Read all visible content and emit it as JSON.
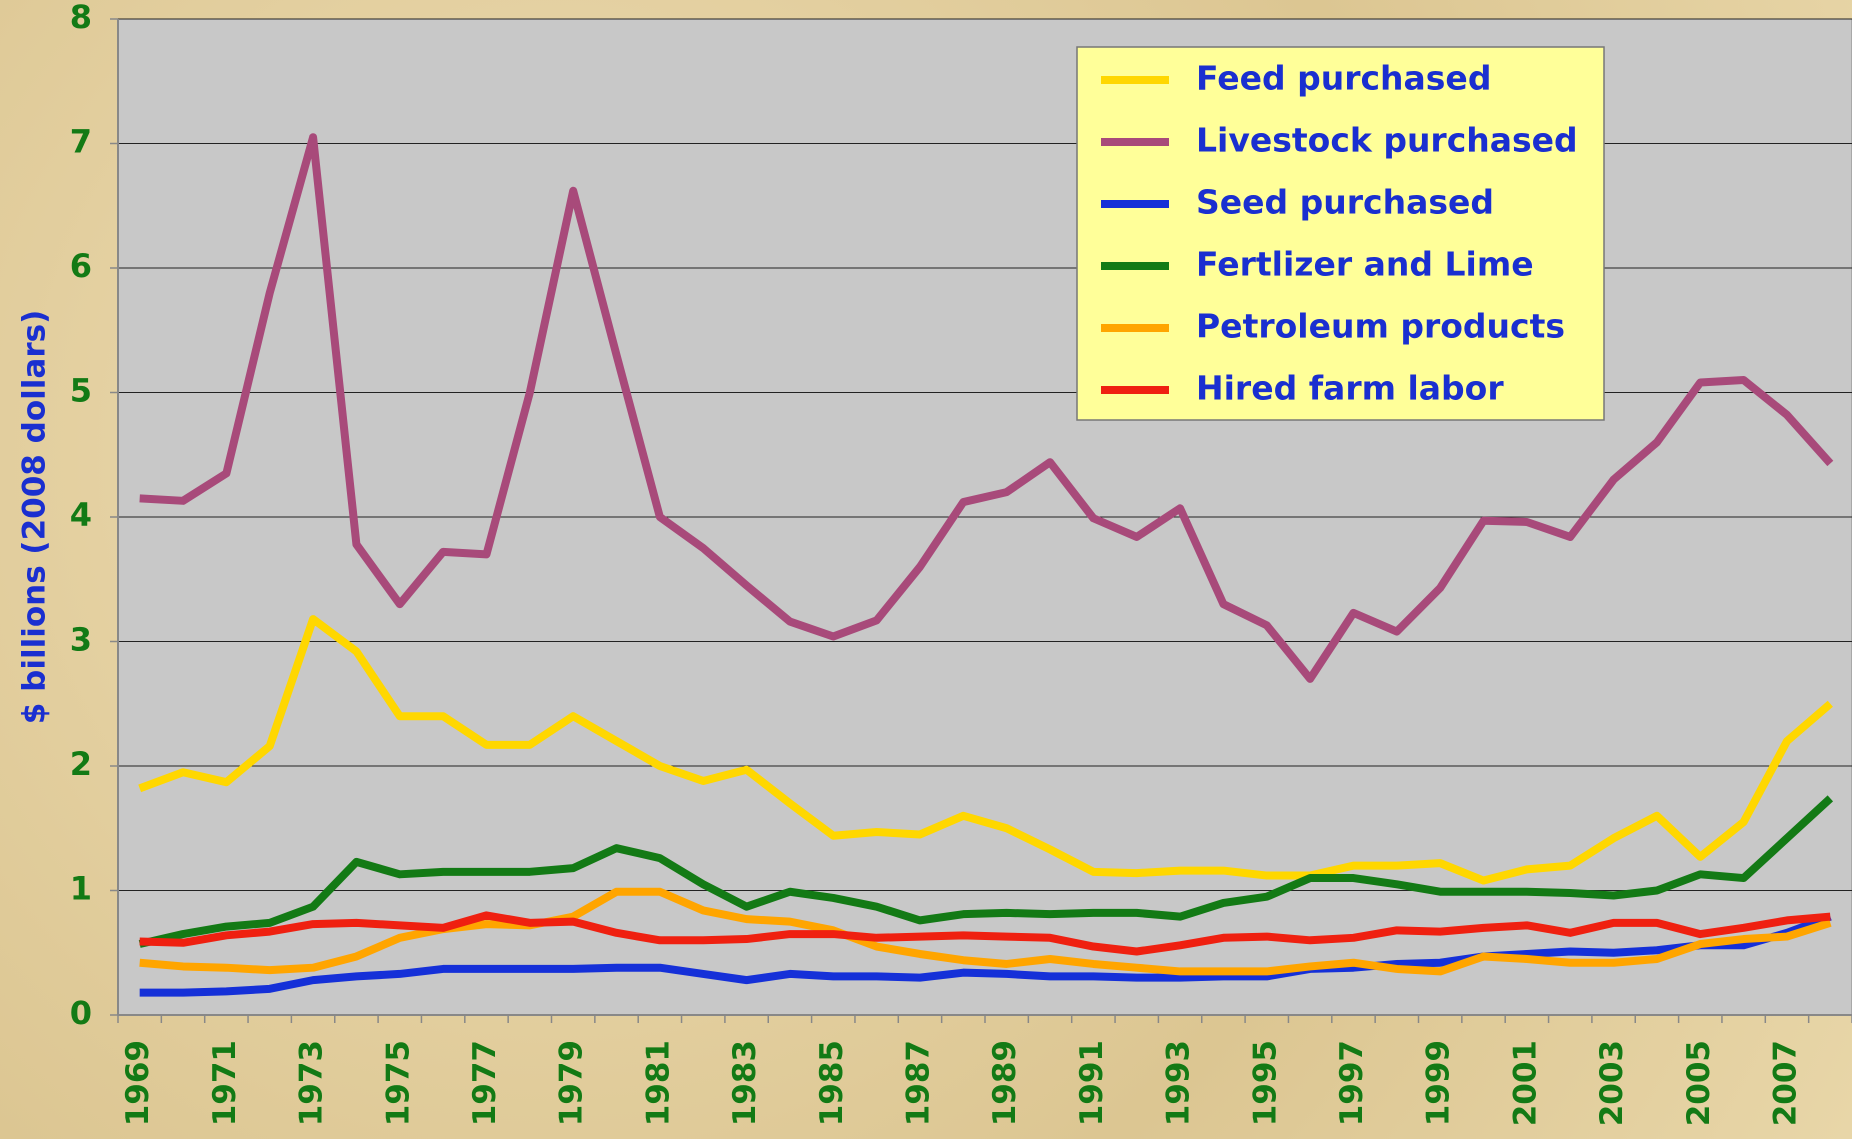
{
  "chart_data": {
    "type": "line",
    "y_label": "$ billions (2008 dollars)",
    "categories": [
      "1969",
      null,
      "1971",
      null,
      "1973",
      null,
      "1975",
      null,
      "1977",
      null,
      "1979",
      null,
      "1981",
      null,
      "1983",
      null,
      "1985",
      null,
      "1987",
      null,
      "1989",
      null,
      "1991",
      null,
      "1993",
      null,
      "1995",
      null,
      "1997",
      null,
      "1999",
      null,
      "2001",
      null,
      "2003",
      null,
      "2005",
      null,
      "2007",
      null
    ],
    "ylim": [
      0,
      8
    ],
    "yticks": [
      0,
      1,
      2,
      3,
      4,
      5,
      6,
      7,
      8
    ],
    "grid": true,
    "legend": "upper right",
    "series": [
      {
        "name": "Feed purchased",
        "color": "#ffd700",
        "values": [
          1.82,
          1.95,
          1.87,
          2.16,
          3.18,
          2.92,
          2.4,
          2.4,
          2.17,
          2.17,
          2.4,
          2.2,
          2.0,
          1.88,
          1.97,
          1.7,
          1.44,
          1.47,
          1.45,
          1.6,
          1.5,
          1.33,
          1.15,
          1.14,
          1.16,
          1.16,
          1.12,
          1.12,
          1.2,
          1.2,
          1.22,
          1.08,
          1.17,
          1.2,
          1.42,
          1.6,
          1.27,
          1.55,
          2.2,
          2.5
        ]
      },
      {
        "name": "Livestock purchased",
        "color": "#a84a7a",
        "values": [
          4.15,
          4.13,
          4.35,
          5.8,
          7.05,
          3.78,
          3.3,
          3.72,
          3.7,
          5.0,
          6.62,
          5.3,
          4.0,
          3.75,
          3.45,
          3.16,
          3.04,
          3.17,
          3.6,
          4.12,
          4.2,
          4.44,
          3.99,
          3.84,
          4.07,
          3.3,
          3.13,
          2.7,
          3.23,
          3.08,
          3.43,
          3.97,
          3.96,
          3.84,
          4.3,
          4.6,
          5.08,
          5.1,
          4.82,
          4.43
        ]
      },
      {
        "name": "Seed purchased",
        "color": "#1530d8",
        "values": [
          0.18,
          0.18,
          0.19,
          0.21,
          0.28,
          0.31,
          0.33,
          0.37,
          0.37,
          0.37,
          0.37,
          0.38,
          0.38,
          0.33,
          0.28,
          0.33,
          0.31,
          0.31,
          0.3,
          0.34,
          0.33,
          0.31,
          0.31,
          0.3,
          0.3,
          0.31,
          0.31,
          0.37,
          0.38,
          0.41,
          0.42,
          0.47,
          0.49,
          0.51,
          0.5,
          0.52,
          0.56,
          0.56,
          0.66,
          0.79
        ]
      },
      {
        "name": "Fertlizer and Lime",
        "color": "#137a15",
        "values": [
          0.57,
          0.65,
          0.71,
          0.74,
          0.87,
          1.23,
          1.13,
          1.15,
          1.15,
          1.15,
          1.18,
          1.34,
          1.26,
          1.05,
          0.87,
          0.99,
          0.94,
          0.87,
          0.76,
          0.81,
          0.82,
          0.81,
          0.82,
          0.82,
          0.79,
          0.9,
          0.95,
          1.1,
          1.1,
          1.05,
          0.99,
          0.99,
          0.99,
          0.98,
          0.96,
          1.0,
          1.13,
          1.1,
          1.42,
          1.74
        ]
      },
      {
        "name": "Petroleum products",
        "color": "#ffa500",
        "values": [
          0.42,
          0.39,
          0.38,
          0.36,
          0.38,
          0.47,
          0.62,
          0.69,
          0.73,
          0.72,
          0.79,
          0.99,
          0.99,
          0.84,
          0.77,
          0.75,
          0.68,
          0.55,
          0.49,
          0.44,
          0.41,
          0.45,
          0.41,
          0.38,
          0.35,
          0.35,
          0.35,
          0.39,
          0.42,
          0.37,
          0.35,
          0.47,
          0.45,
          0.42,
          0.42,
          0.45,
          0.57,
          0.61,
          0.63,
          0.74
        ]
      },
      {
        "name": "Hired farm labor",
        "color": "#ef2010",
        "values": [
          0.59,
          0.58,
          0.64,
          0.67,
          0.73,
          0.74,
          0.72,
          0.7,
          0.8,
          0.74,
          0.75,
          0.66,
          0.6,
          0.6,
          0.61,
          0.65,
          0.65,
          0.62,
          0.63,
          0.64,
          0.63,
          0.62,
          0.55,
          0.51,
          0.56,
          0.62,
          0.63,
          0.6,
          0.62,
          0.68,
          0.67,
          0.7,
          0.72,
          0.66,
          0.74,
          0.74,
          0.65,
          0.7,
          0.76,
          0.79
        ]
      }
    ]
  }
}
